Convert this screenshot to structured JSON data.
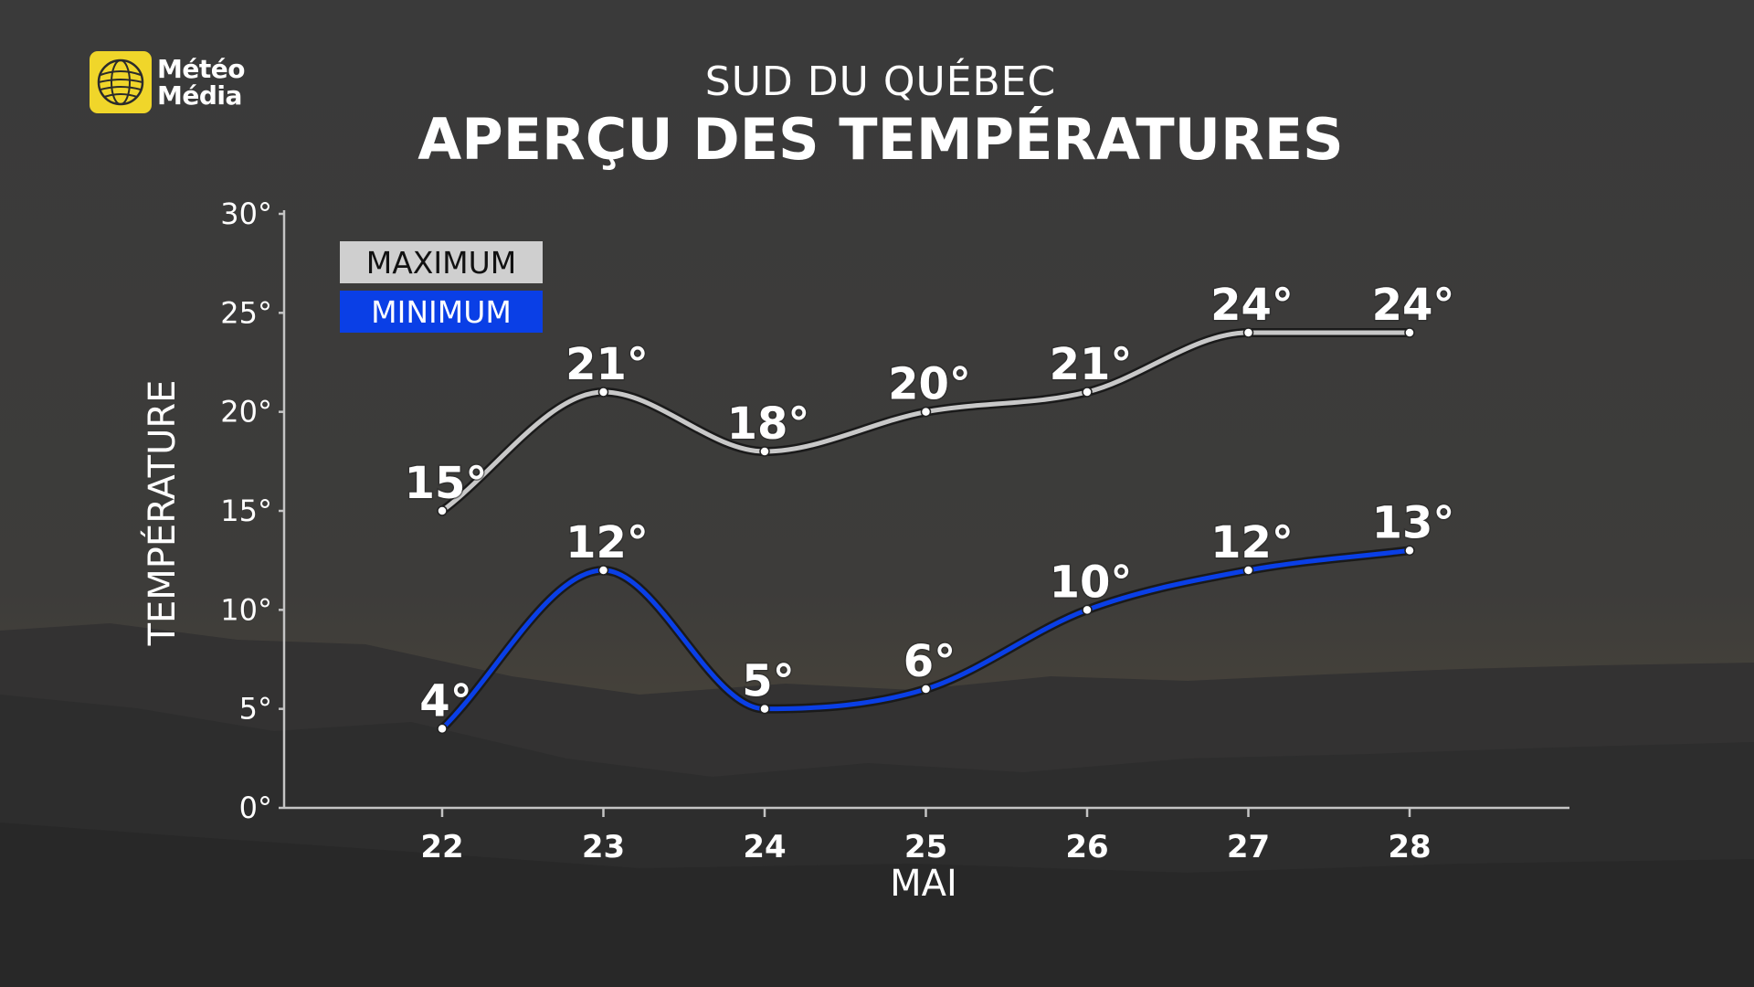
{
  "header": {
    "logo_line1": "Météo",
    "logo_line2": "Média",
    "subtitle": "SUD DU QUÉBEC",
    "title": "APERÇU DES TEMPÉRATURES"
  },
  "colors": {
    "maximum": "#c8c8c8",
    "minimum": "#0a3fe6",
    "logo": "#f0d62a"
  },
  "chart_data": {
    "type": "line",
    "title": "APERÇU DES TEMPÉRATURES",
    "subtitle": "SUD DU QUÉBEC",
    "xlabel": "MAI",
    "ylabel": "TEMPÉRATURE",
    "x": [
      "22",
      "23",
      "24",
      "25",
      "26",
      "27",
      "28"
    ],
    "ylim": [
      0,
      30
    ],
    "yticks": [
      "0°",
      "5°",
      "10°",
      "15°",
      "20°",
      "25°",
      "30°"
    ],
    "grid": false,
    "legend_position": "top-left",
    "series": [
      {
        "name": "MAXIMUM",
        "values": [
          15,
          21,
          18,
          20,
          21,
          24,
          24
        ],
        "labels": [
          "15°",
          "21°",
          "18°",
          "20°",
          "21°",
          "24°",
          "24°"
        ]
      },
      {
        "name": "MINIMUM",
        "values": [
          4,
          12,
          5,
          6,
          10,
          12,
          13
        ],
        "labels": [
          "4°",
          "12°",
          "5°",
          "6°",
          "10°",
          "12°",
          "13°"
        ]
      }
    ]
  }
}
